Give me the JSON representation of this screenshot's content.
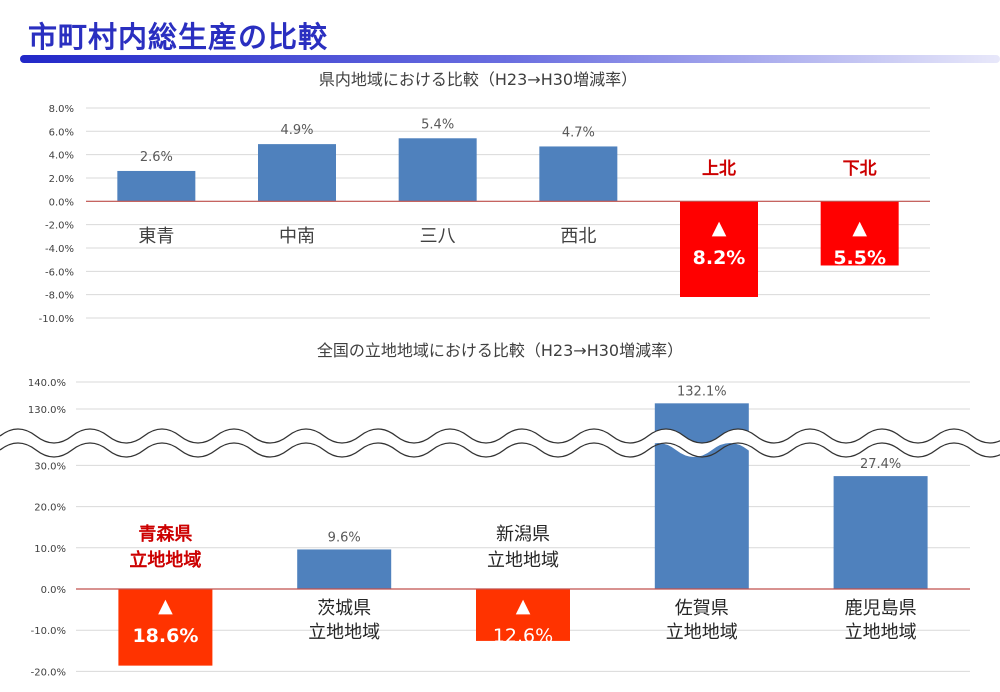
{
  "title": "市町村内総生産の比較",
  "colors": {
    "positive": "#4f81bd",
    "negative_chart1": "#ff0000",
    "negative_chart2": "#ff3300",
    "highlight_text": "#cc0000",
    "zero_line": "#c0504d"
  },
  "chart_data": [
    {
      "type": "bar",
      "title": "県内地域における比較（H23→H30増減率）",
      "categories": [
        "東青",
        "中南",
        "三八",
        "西北",
        "上北",
        "下北"
      ],
      "values": [
        2.6,
        4.9,
        5.4,
        4.7,
        -8.2,
        -5.5
      ],
      "value_labels": [
        "2.6%",
        "4.9%",
        "5.4%",
        "4.7%",
        "▲\n8.2%",
        "▲\n5.5%"
      ],
      "ylim": [
        -10,
        8
      ],
      "yticks": [
        8,
        6,
        4,
        2,
        0,
        -2,
        -4,
        -6,
        -8,
        -10
      ],
      "ytick_labels": [
        "8.0%",
        "6.0%",
        "4.0%",
        "2.0%",
        "0.0%",
        "-2.0%",
        "-4.0%",
        "-6.0%",
        "-8.0%",
        "-10.0%"
      ],
      "grid": true
    },
    {
      "type": "bar",
      "title": "全国の立地地域における比較（H23→H30増減率）",
      "categories": [
        "青森県\n立地地域",
        "茨城県\n立地地域",
        "新潟県\n立地地域",
        "佐賀県\n立地地域",
        "鹿児島県\n立地地域"
      ],
      "values": [
        -18.6,
        9.6,
        -12.6,
        132.1,
        27.4
      ],
      "value_labels": [
        "▲\n18.6%",
        "9.6%",
        "▲\n12.6%",
        "132.1%",
        "27.4%"
      ],
      "highlight": [
        true,
        false,
        false,
        false,
        false
      ],
      "ylim": [
        -20,
        140
      ],
      "axis_break": [
        30,
        130
      ],
      "yticks": [
        140,
        130,
        30,
        20,
        10,
        0,
        -10,
        -20
      ],
      "ytick_labels": [
        "140.0%",
        "130.0%",
        "30.0%",
        "20.0%",
        "10.0%",
        "0.0%",
        "-10.0%",
        "-20.0%"
      ],
      "grid": true
    }
  ]
}
